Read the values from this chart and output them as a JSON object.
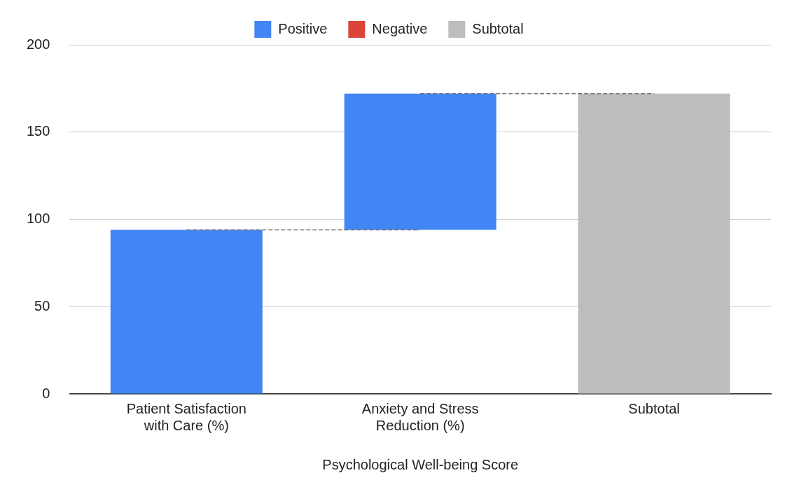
{
  "chart_data": {
    "type": "bar",
    "xlabel": "Psychological Well-being Score",
    "categories": [
      "Patient Satisfaction with Care (%)",
      "Anxiety and Stress Reduction (%)",
      "Subtotal"
    ],
    "series": [
      {
        "name": "Positive",
        "color": "#4285f4",
        "values": [
          94,
          78,
          null
        ],
        "base": [
          0,
          94,
          null
        ]
      },
      {
        "name": "Negative",
        "color": "#db4437",
        "values": [
          null,
          null,
          null
        ]
      },
      {
        "name": "Subtotal",
        "color": "#bdbdbd",
        "values": [
          null,
          null,
          172
        ],
        "base": [
          null,
          null,
          0
        ]
      },
      {
        "type": "line",
        "color": "#757575",
        "line_style": "dashed",
        "marker": "none",
        "values": [
          94,
          94,
          null
        ]
      },
      {
        "type": "line",
        "color": "#757575",
        "line_style": "dashed",
        "marker": "none",
        "values": [
          null,
          172,
          172
        ]
      }
    ],
    "ylim": [
      0,
      200
    ],
    "yticks": [
      0,
      50,
      100,
      150,
      200
    ],
    "grid": "y",
    "legend": "top"
  }
}
